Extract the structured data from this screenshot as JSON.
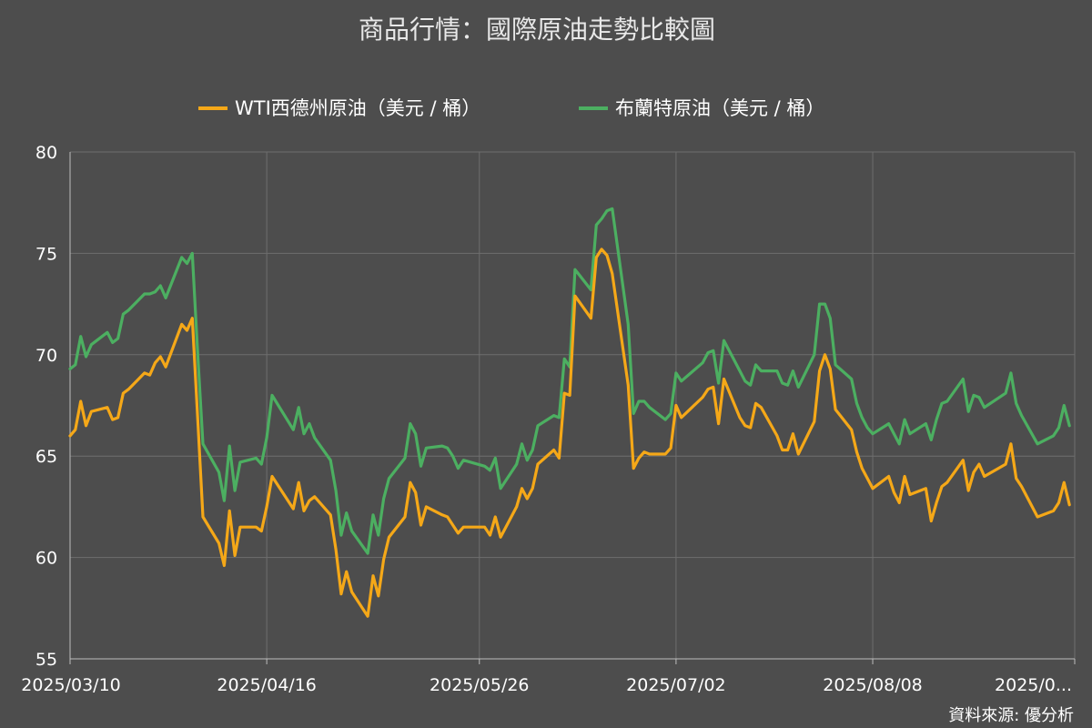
{
  "chart_data": {
    "type": "line",
    "title": "商品行情：國際原油走勢比較圖",
    "source": "資料來源: 優分析",
    "ylim": [
      55,
      80
    ],
    "y_ticks": [
      "80",
      "75",
      "70",
      "65",
      "60",
      "55"
    ],
    "x_tick_labels": [
      "2025/03/10",
      "2025/04/16",
      "2025/05/26",
      "2025/07/02",
      "2025/08/08",
      "2025/0..."
    ],
    "x_ticks": [
      "2025-03-10",
      "2025-04-16",
      "2025-05-26",
      "2025-07-02",
      "2025-08-08",
      "2025-09-15"
    ],
    "x_range": [
      "2025-03-10",
      "2025-09-15"
    ],
    "grid": true,
    "legend_position": "top",
    "series": [
      {
        "name": "WTI西德州原油（美元 / 桶）",
        "color": "#f5a818",
        "points": [
          [
            "2025-03-10",
            66.0
          ],
          [
            "2025-03-11",
            66.3
          ],
          [
            "2025-03-12",
            67.7
          ],
          [
            "2025-03-13",
            66.5
          ],
          [
            "2025-03-14",
            67.2
          ],
          [
            "2025-03-17",
            67.4
          ],
          [
            "2025-03-18",
            66.8
          ],
          [
            "2025-03-19",
            66.9
          ],
          [
            "2025-03-20",
            68.1
          ],
          [
            "2025-03-21",
            68.3
          ],
          [
            "2025-03-24",
            69.1
          ],
          [
            "2025-03-25",
            69.0
          ],
          [
            "2025-03-26",
            69.6
          ],
          [
            "2025-03-27",
            69.9
          ],
          [
            "2025-03-28",
            69.4
          ],
          [
            "2025-03-31",
            71.5
          ],
          [
            "2025-04-01",
            71.2
          ],
          [
            "2025-04-02",
            71.8
          ],
          [
            "2025-04-03",
            66.9
          ],
          [
            "2025-04-04",
            62.0
          ],
          [
            "2025-04-07",
            60.7
          ],
          [
            "2025-04-08",
            59.6
          ],
          [
            "2025-04-09",
            62.3
          ],
          [
            "2025-04-10",
            60.1
          ],
          [
            "2025-04-11",
            61.5
          ],
          [
            "2025-04-14",
            61.5
          ],
          [
            "2025-04-15",
            61.3
          ],
          [
            "2025-04-16",
            62.5
          ],
          [
            "2025-04-17",
            64.0
          ],
          [
            "2025-04-21",
            62.4
          ],
          [
            "2025-04-22",
            63.7
          ],
          [
            "2025-04-23",
            62.3
          ],
          [
            "2025-04-24",
            62.8
          ],
          [
            "2025-04-25",
            63.0
          ],
          [
            "2025-04-28",
            62.1
          ],
          [
            "2025-04-29",
            60.4
          ],
          [
            "2025-04-30",
            58.2
          ],
          [
            "2025-05-01",
            59.3
          ],
          [
            "2025-05-02",
            58.3
          ],
          [
            "2025-05-05",
            57.1
          ],
          [
            "2025-05-06",
            59.1
          ],
          [
            "2025-05-07",
            58.1
          ],
          [
            "2025-05-08",
            59.9
          ],
          [
            "2025-05-09",
            61.0
          ],
          [
            "2025-05-12",
            62.0
          ],
          [
            "2025-05-13",
            63.7
          ],
          [
            "2025-05-14",
            63.2
          ],
          [
            "2025-05-15",
            61.6
          ],
          [
            "2025-05-16",
            62.5
          ],
          [
            "2025-05-19",
            62.1
          ],
          [
            "2025-05-20",
            62.0
          ],
          [
            "2025-05-21",
            61.6
          ],
          [
            "2025-05-22",
            61.2
          ],
          [
            "2025-05-23",
            61.5
          ],
          [
            "2025-05-27",
            61.5
          ],
          [
            "2025-05-28",
            61.1
          ],
          [
            "2025-05-29",
            62.0
          ],
          [
            "2025-05-30",
            61.0
          ],
          [
            "2025-06-02",
            62.5
          ],
          [
            "2025-06-03",
            63.4
          ],
          [
            "2025-06-04",
            62.9
          ],
          [
            "2025-06-05",
            63.4
          ],
          [
            "2025-06-06",
            64.6
          ],
          [
            "2025-06-09",
            65.3
          ],
          [
            "2025-06-10",
            64.9
          ],
          [
            "2025-06-11",
            68.1
          ],
          [
            "2025-06-12",
            68.0
          ],
          [
            "2025-06-13",
            72.9
          ],
          [
            "2025-06-16",
            71.8
          ],
          [
            "2025-06-17",
            74.8
          ],
          [
            "2025-06-18",
            75.2
          ],
          [
            "2025-06-19",
            74.9
          ],
          [
            "2025-06-20",
            74.0
          ],
          [
            "2025-06-23",
            68.5
          ],
          [
            "2025-06-24",
            64.4
          ],
          [
            "2025-06-25",
            64.9
          ],
          [
            "2025-06-26",
            65.2
          ],
          [
            "2025-06-27",
            65.1
          ],
          [
            "2025-06-30",
            65.1
          ],
          [
            "2025-07-01",
            65.4
          ],
          [
            "2025-07-02",
            67.5
          ],
          [
            "2025-07-03",
            66.9
          ],
          [
            "2025-07-07",
            67.9
          ],
          [
            "2025-07-08",
            68.3
          ],
          [
            "2025-07-09",
            68.4
          ],
          [
            "2025-07-10",
            66.6
          ],
          [
            "2025-07-11",
            68.8
          ],
          [
            "2025-07-14",
            66.9
          ],
          [
            "2025-07-15",
            66.5
          ],
          [
            "2025-07-16",
            66.4
          ],
          [
            "2025-07-17",
            67.6
          ],
          [
            "2025-07-18",
            67.4
          ],
          [
            "2025-07-21",
            66.0
          ],
          [
            "2025-07-22",
            65.3
          ],
          [
            "2025-07-23",
            65.3
          ],
          [
            "2025-07-24",
            66.1
          ],
          [
            "2025-07-25",
            65.1
          ],
          [
            "2025-07-28",
            66.7
          ],
          [
            "2025-07-29",
            69.2
          ],
          [
            "2025-07-30",
            70.0
          ],
          [
            "2025-07-31",
            69.3
          ],
          [
            "2025-08-01",
            67.3
          ],
          [
            "2025-08-04",
            66.3
          ],
          [
            "2025-08-05",
            65.2
          ],
          [
            "2025-08-06",
            64.4
          ],
          [
            "2025-08-07",
            63.9
          ],
          [
            "2025-08-08",
            63.4
          ],
          [
            "2025-08-11",
            64.0
          ],
          [
            "2025-08-12",
            63.2
          ],
          [
            "2025-08-13",
            62.7
          ],
          [
            "2025-08-14",
            64.0
          ],
          [
            "2025-08-15",
            63.1
          ],
          [
            "2025-08-18",
            63.4
          ],
          [
            "2025-08-19",
            61.8
          ],
          [
            "2025-08-20",
            62.7
          ],
          [
            "2025-08-21",
            63.5
          ],
          [
            "2025-08-22",
            63.7
          ],
          [
            "2025-08-25",
            64.8
          ],
          [
            "2025-08-26",
            63.3
          ],
          [
            "2025-08-27",
            64.2
          ],
          [
            "2025-08-28",
            64.6
          ],
          [
            "2025-08-29",
            64.0
          ],
          [
            "2025-09-02",
            64.6
          ],
          [
            "2025-09-03",
            65.6
          ],
          [
            "2025-09-04",
            63.9
          ],
          [
            "2025-09-05",
            63.5
          ],
          [
            "2025-09-08",
            62.0
          ],
          [
            "2025-09-11",
            62.3
          ],
          [
            "2025-09-12",
            62.7
          ],
          [
            "2025-09-13",
            63.7
          ],
          [
            "2025-09-14",
            62.6
          ]
        ]
      },
      {
        "name": "布蘭特原油（美元 / 桶）",
        "color": "#4caf61",
        "points": [
          [
            "2025-03-10",
            69.3
          ],
          [
            "2025-03-11",
            69.5
          ],
          [
            "2025-03-12",
            70.9
          ],
          [
            "2025-03-13",
            69.9
          ],
          [
            "2025-03-14",
            70.5
          ],
          [
            "2025-03-17",
            71.1
          ],
          [
            "2025-03-18",
            70.6
          ],
          [
            "2025-03-19",
            70.8
          ],
          [
            "2025-03-20",
            72.0
          ],
          [
            "2025-03-21",
            72.2
          ],
          [
            "2025-03-24",
            73.0
          ],
          [
            "2025-03-25",
            73.0
          ],
          [
            "2025-03-26",
            73.1
          ],
          [
            "2025-03-27",
            73.4
          ],
          [
            "2025-03-28",
            72.8
          ],
          [
            "2025-03-31",
            74.8
          ],
          [
            "2025-04-01",
            74.5
          ],
          [
            "2025-04-02",
            75.0
          ],
          [
            "2025-04-03",
            70.1
          ],
          [
            "2025-04-04",
            65.6
          ],
          [
            "2025-04-07",
            64.2
          ],
          [
            "2025-04-08",
            62.8
          ],
          [
            "2025-04-09",
            65.5
          ],
          [
            "2025-04-10",
            63.3
          ],
          [
            "2025-04-11",
            64.7
          ],
          [
            "2025-04-14",
            64.9
          ],
          [
            "2025-04-15",
            64.6
          ],
          [
            "2025-04-16",
            65.9
          ],
          [
            "2025-04-17",
            68.0
          ],
          [
            "2025-04-21",
            66.3
          ],
          [
            "2025-04-22",
            67.4
          ],
          [
            "2025-04-23",
            66.1
          ],
          [
            "2025-04-24",
            66.6
          ],
          [
            "2025-04-25",
            65.9
          ],
          [
            "2025-04-28",
            64.8
          ],
          [
            "2025-04-29",
            63.3
          ],
          [
            "2025-04-30",
            61.1
          ],
          [
            "2025-05-01",
            62.2
          ],
          [
            "2025-05-02",
            61.3
          ],
          [
            "2025-05-05",
            60.2
          ],
          [
            "2025-05-06",
            62.1
          ],
          [
            "2025-05-07",
            61.1
          ],
          [
            "2025-05-08",
            62.9
          ],
          [
            "2025-05-09",
            63.9
          ],
          [
            "2025-05-12",
            64.9
          ],
          [
            "2025-05-13",
            66.6
          ],
          [
            "2025-05-14",
            66.1
          ],
          [
            "2025-05-15",
            64.5
          ],
          [
            "2025-05-16",
            65.4
          ],
          [
            "2025-05-19",
            65.5
          ],
          [
            "2025-05-20",
            65.4
          ],
          [
            "2025-05-21",
            65.0
          ],
          [
            "2025-05-22",
            64.4
          ],
          [
            "2025-05-23",
            64.8
          ],
          [
            "2025-05-27",
            64.5
          ],
          [
            "2025-05-28",
            64.3
          ],
          [
            "2025-05-29",
            64.9
          ],
          [
            "2025-05-30",
            63.4
          ],
          [
            "2025-06-02",
            64.6
          ],
          [
            "2025-06-03",
            65.6
          ],
          [
            "2025-06-04",
            64.8
          ],
          [
            "2025-06-05",
            65.3
          ],
          [
            "2025-06-06",
            66.5
          ],
          [
            "2025-06-09",
            67.0
          ],
          [
            "2025-06-10",
            66.9
          ],
          [
            "2025-06-11",
            69.8
          ],
          [
            "2025-06-12",
            69.4
          ],
          [
            "2025-06-13",
            74.2
          ],
          [
            "2025-06-16",
            73.2
          ],
          [
            "2025-06-17",
            76.4
          ],
          [
            "2025-06-18",
            76.7
          ],
          [
            "2025-06-19",
            77.1
          ],
          [
            "2025-06-20",
            77.2
          ],
          [
            "2025-06-23",
            71.5
          ],
          [
            "2025-06-24",
            67.1
          ],
          [
            "2025-06-25",
            67.7
          ],
          [
            "2025-06-26",
            67.7
          ],
          [
            "2025-06-27",
            67.4
          ],
          [
            "2025-06-30",
            66.8
          ],
          [
            "2025-07-01",
            67.1
          ],
          [
            "2025-07-02",
            69.1
          ],
          [
            "2025-07-03",
            68.7
          ],
          [
            "2025-07-07",
            69.6
          ],
          [
            "2025-07-08",
            70.1
          ],
          [
            "2025-07-09",
            70.2
          ],
          [
            "2025-07-10",
            68.6
          ],
          [
            "2025-07-11",
            70.7
          ],
          [
            "2025-07-14",
            69.2
          ],
          [
            "2025-07-15",
            68.7
          ],
          [
            "2025-07-16",
            68.5
          ],
          [
            "2025-07-17",
            69.5
          ],
          [
            "2025-07-18",
            69.2
          ],
          [
            "2025-07-21",
            69.2
          ],
          [
            "2025-07-22",
            68.6
          ],
          [
            "2025-07-23",
            68.5
          ],
          [
            "2025-07-24",
            69.2
          ],
          [
            "2025-07-25",
            68.4
          ],
          [
            "2025-07-28",
            70.0
          ],
          [
            "2025-07-29",
            72.5
          ],
          [
            "2025-07-30",
            72.5
          ],
          [
            "2025-07-31",
            71.8
          ],
          [
            "2025-08-01",
            69.5
          ],
          [
            "2025-08-04",
            68.8
          ],
          [
            "2025-08-05",
            67.6
          ],
          [
            "2025-08-06",
            66.9
          ],
          [
            "2025-08-07",
            66.4
          ],
          [
            "2025-08-08",
            66.1
          ],
          [
            "2025-08-11",
            66.6
          ],
          [
            "2025-08-12",
            66.1
          ],
          [
            "2025-08-13",
            65.6
          ],
          [
            "2025-08-14",
            66.8
          ],
          [
            "2025-08-15",
            66.1
          ],
          [
            "2025-08-18",
            66.6
          ],
          [
            "2025-08-19",
            65.8
          ],
          [
            "2025-08-20",
            66.8
          ],
          [
            "2025-08-21",
            67.6
          ],
          [
            "2025-08-22",
            67.7
          ],
          [
            "2025-08-25",
            68.8
          ],
          [
            "2025-08-26",
            67.2
          ],
          [
            "2025-08-27",
            68.0
          ],
          [
            "2025-08-28",
            67.9
          ],
          [
            "2025-08-29",
            67.4
          ],
          [
            "2025-09-02",
            68.1
          ],
          [
            "2025-09-03",
            69.1
          ],
          [
            "2025-09-04",
            67.6
          ],
          [
            "2025-09-05",
            67.0
          ],
          [
            "2025-09-08",
            65.6
          ],
          [
            "2025-09-11",
            66.0
          ],
          [
            "2025-09-12",
            66.4
          ],
          [
            "2025-09-13",
            67.5
          ],
          [
            "2025-09-14",
            66.5
          ]
        ]
      }
    ]
  }
}
